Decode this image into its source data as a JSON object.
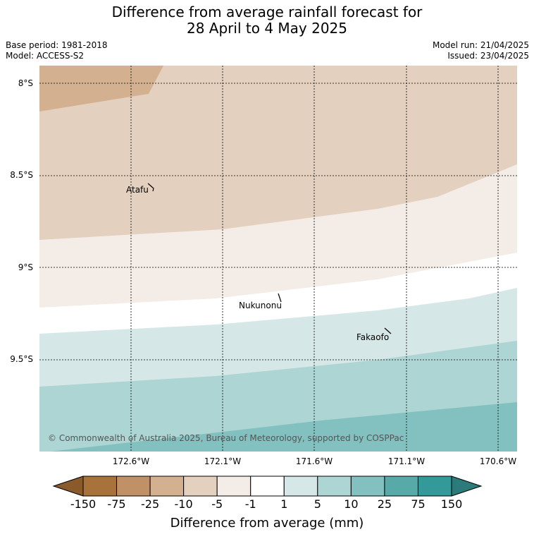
{
  "title_line1": "Difference from average rainfall forecast for",
  "title_line2": "28 April to 4 May 2025",
  "base_period": "Base period: 1981-2018",
  "model": "Model: ACCESS-S2",
  "model_run": "Model run: 21/04/2025",
  "issued": "Issued: 23/04/2025",
  "lat_labels": [
    "8°S",
    "8.5°S",
    "9°S",
    "9.5°S"
  ],
  "lon_labels": [
    "172.6°W",
    "172.1°W",
    "171.6°W",
    "171.1°W",
    "170.6°W"
  ],
  "places": [
    "Atafu",
    "Nukunonu",
    "Fakaofo"
  ],
  "copyright": "© Commonwealth of Australia 2025, Bureau of Meteorology, supported by COSPPac",
  "colorbar": {
    "ticks": [
      "-150",
      "-75",
      "-25",
      "-10",
      "-5",
      "-1",
      "1",
      "5",
      "10",
      "25",
      "75",
      "150"
    ],
    "colors": [
      "#a8733b",
      "#c09167",
      "#d3b08f",
      "#e3d0bf",
      "#f4ede7",
      "#ffffff",
      "#d5e8e7",
      "#acd5d4",
      "#82c1c0",
      "#58aaa9",
      "#339a99"
    ],
    "low_extend_color": "#8b5a2b",
    "high_extend_color": "#2a7b7a",
    "title": "Difference from average (mm)"
  }
}
